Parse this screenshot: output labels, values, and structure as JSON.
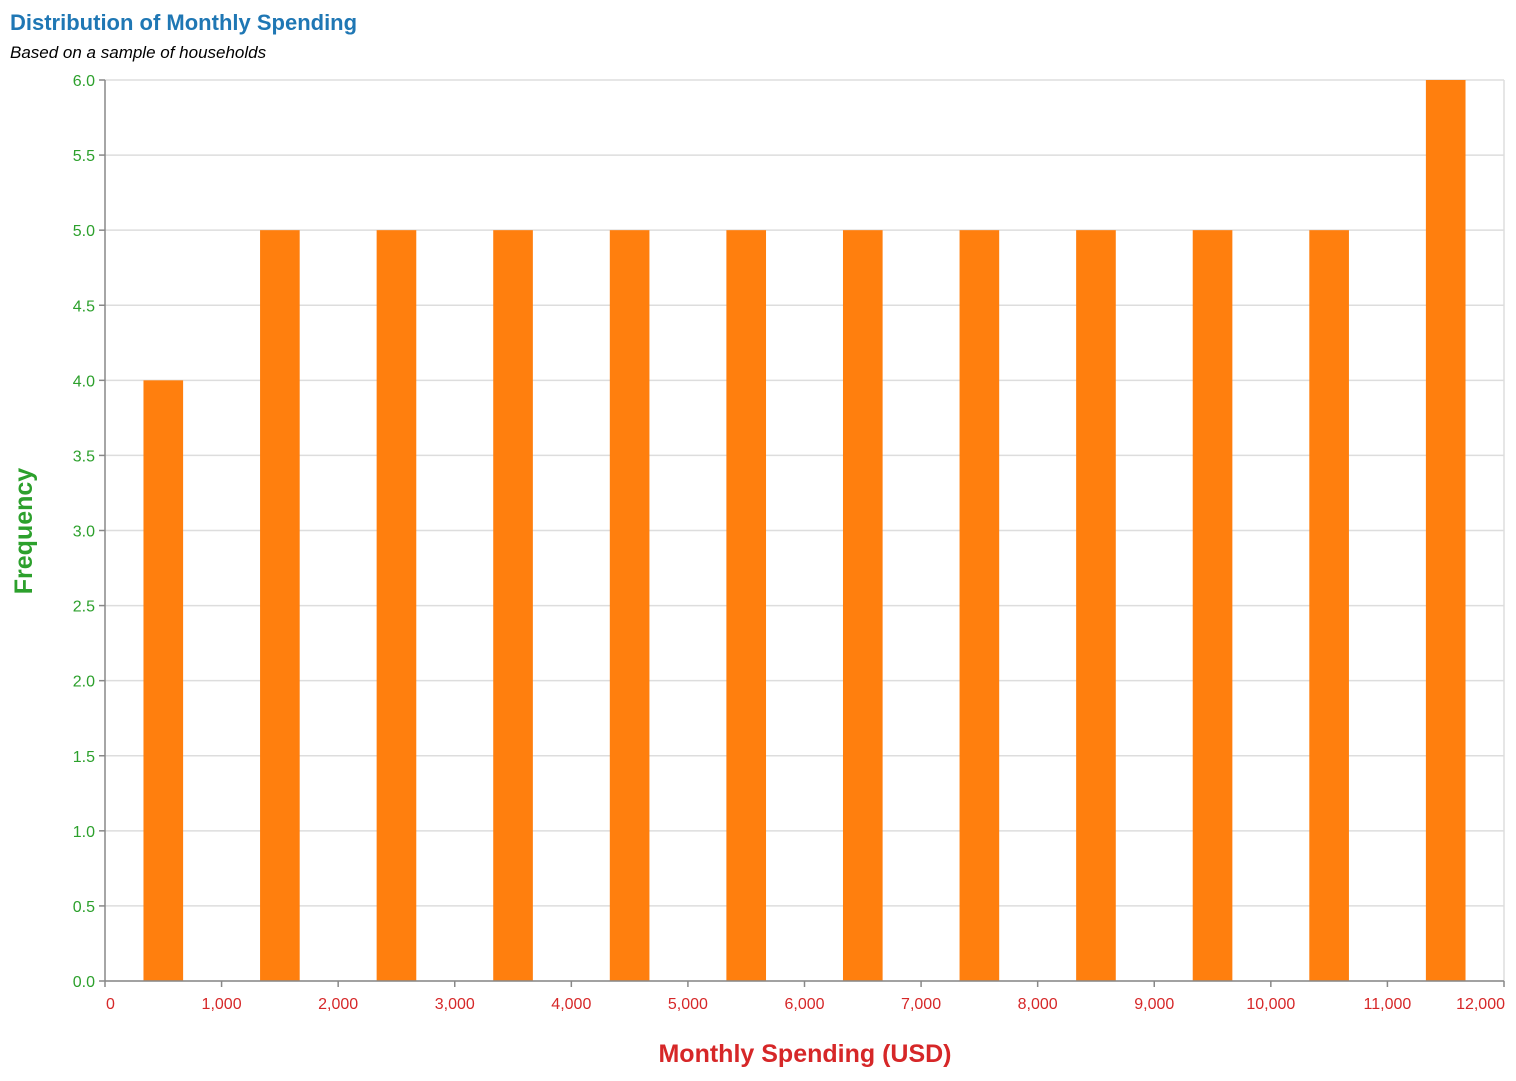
{
  "chart_data": {
    "type": "bar",
    "title": "Distribution of Monthly Spending",
    "subtitle": "Based on a sample of households",
    "xlabel": "Monthly Spending (USD)",
    "ylabel": "Frequency",
    "xlim": [
      0,
      12000
    ],
    "ylim": [
      0,
      6
    ],
    "bin_width": 1000,
    "bins": [
      {
        "start": 0,
        "end": 1000,
        "count": 4
      },
      {
        "start": 1000,
        "end": 2000,
        "count": 5
      },
      {
        "start": 2000,
        "end": 3000,
        "count": 5
      },
      {
        "start": 3000,
        "end": 4000,
        "count": 5
      },
      {
        "start": 4000,
        "end": 5000,
        "count": 5
      },
      {
        "start": 5000,
        "end": 6000,
        "count": 5
      },
      {
        "start": 6000,
        "end": 7000,
        "count": 5
      },
      {
        "start": 7000,
        "end": 8000,
        "count": 5
      },
      {
        "start": 8000,
        "end": 9000,
        "count": 5
      },
      {
        "start": 9000,
        "end": 10000,
        "count": 5
      },
      {
        "start": 10000,
        "end": 11000,
        "count": 5
      },
      {
        "start": 11000,
        "end": 12000,
        "count": 6
      }
    ],
    "x_ticks": [
      "0",
      "1,000",
      "2,000",
      "3,000",
      "4,000",
      "5,000",
      "6,000",
      "7,000",
      "8,000",
      "9,000",
      "10,000",
      "11,000",
      "12,000"
    ],
    "y_ticks": [
      "0.0",
      "0.5",
      "1.0",
      "1.5",
      "2.0",
      "2.5",
      "3.0",
      "3.5",
      "4.0",
      "4.5",
      "5.0",
      "5.5",
      "6.0"
    ],
    "grid": true,
    "legend": "none",
    "colors": {
      "bar": "#ff7f0e",
      "title": "#1f77b4",
      "subtitle": "#000000",
      "y_axis": "#2ca02c",
      "x_axis": "#d62728",
      "grid": "#dddddd",
      "axis_line": "#888888"
    }
  }
}
